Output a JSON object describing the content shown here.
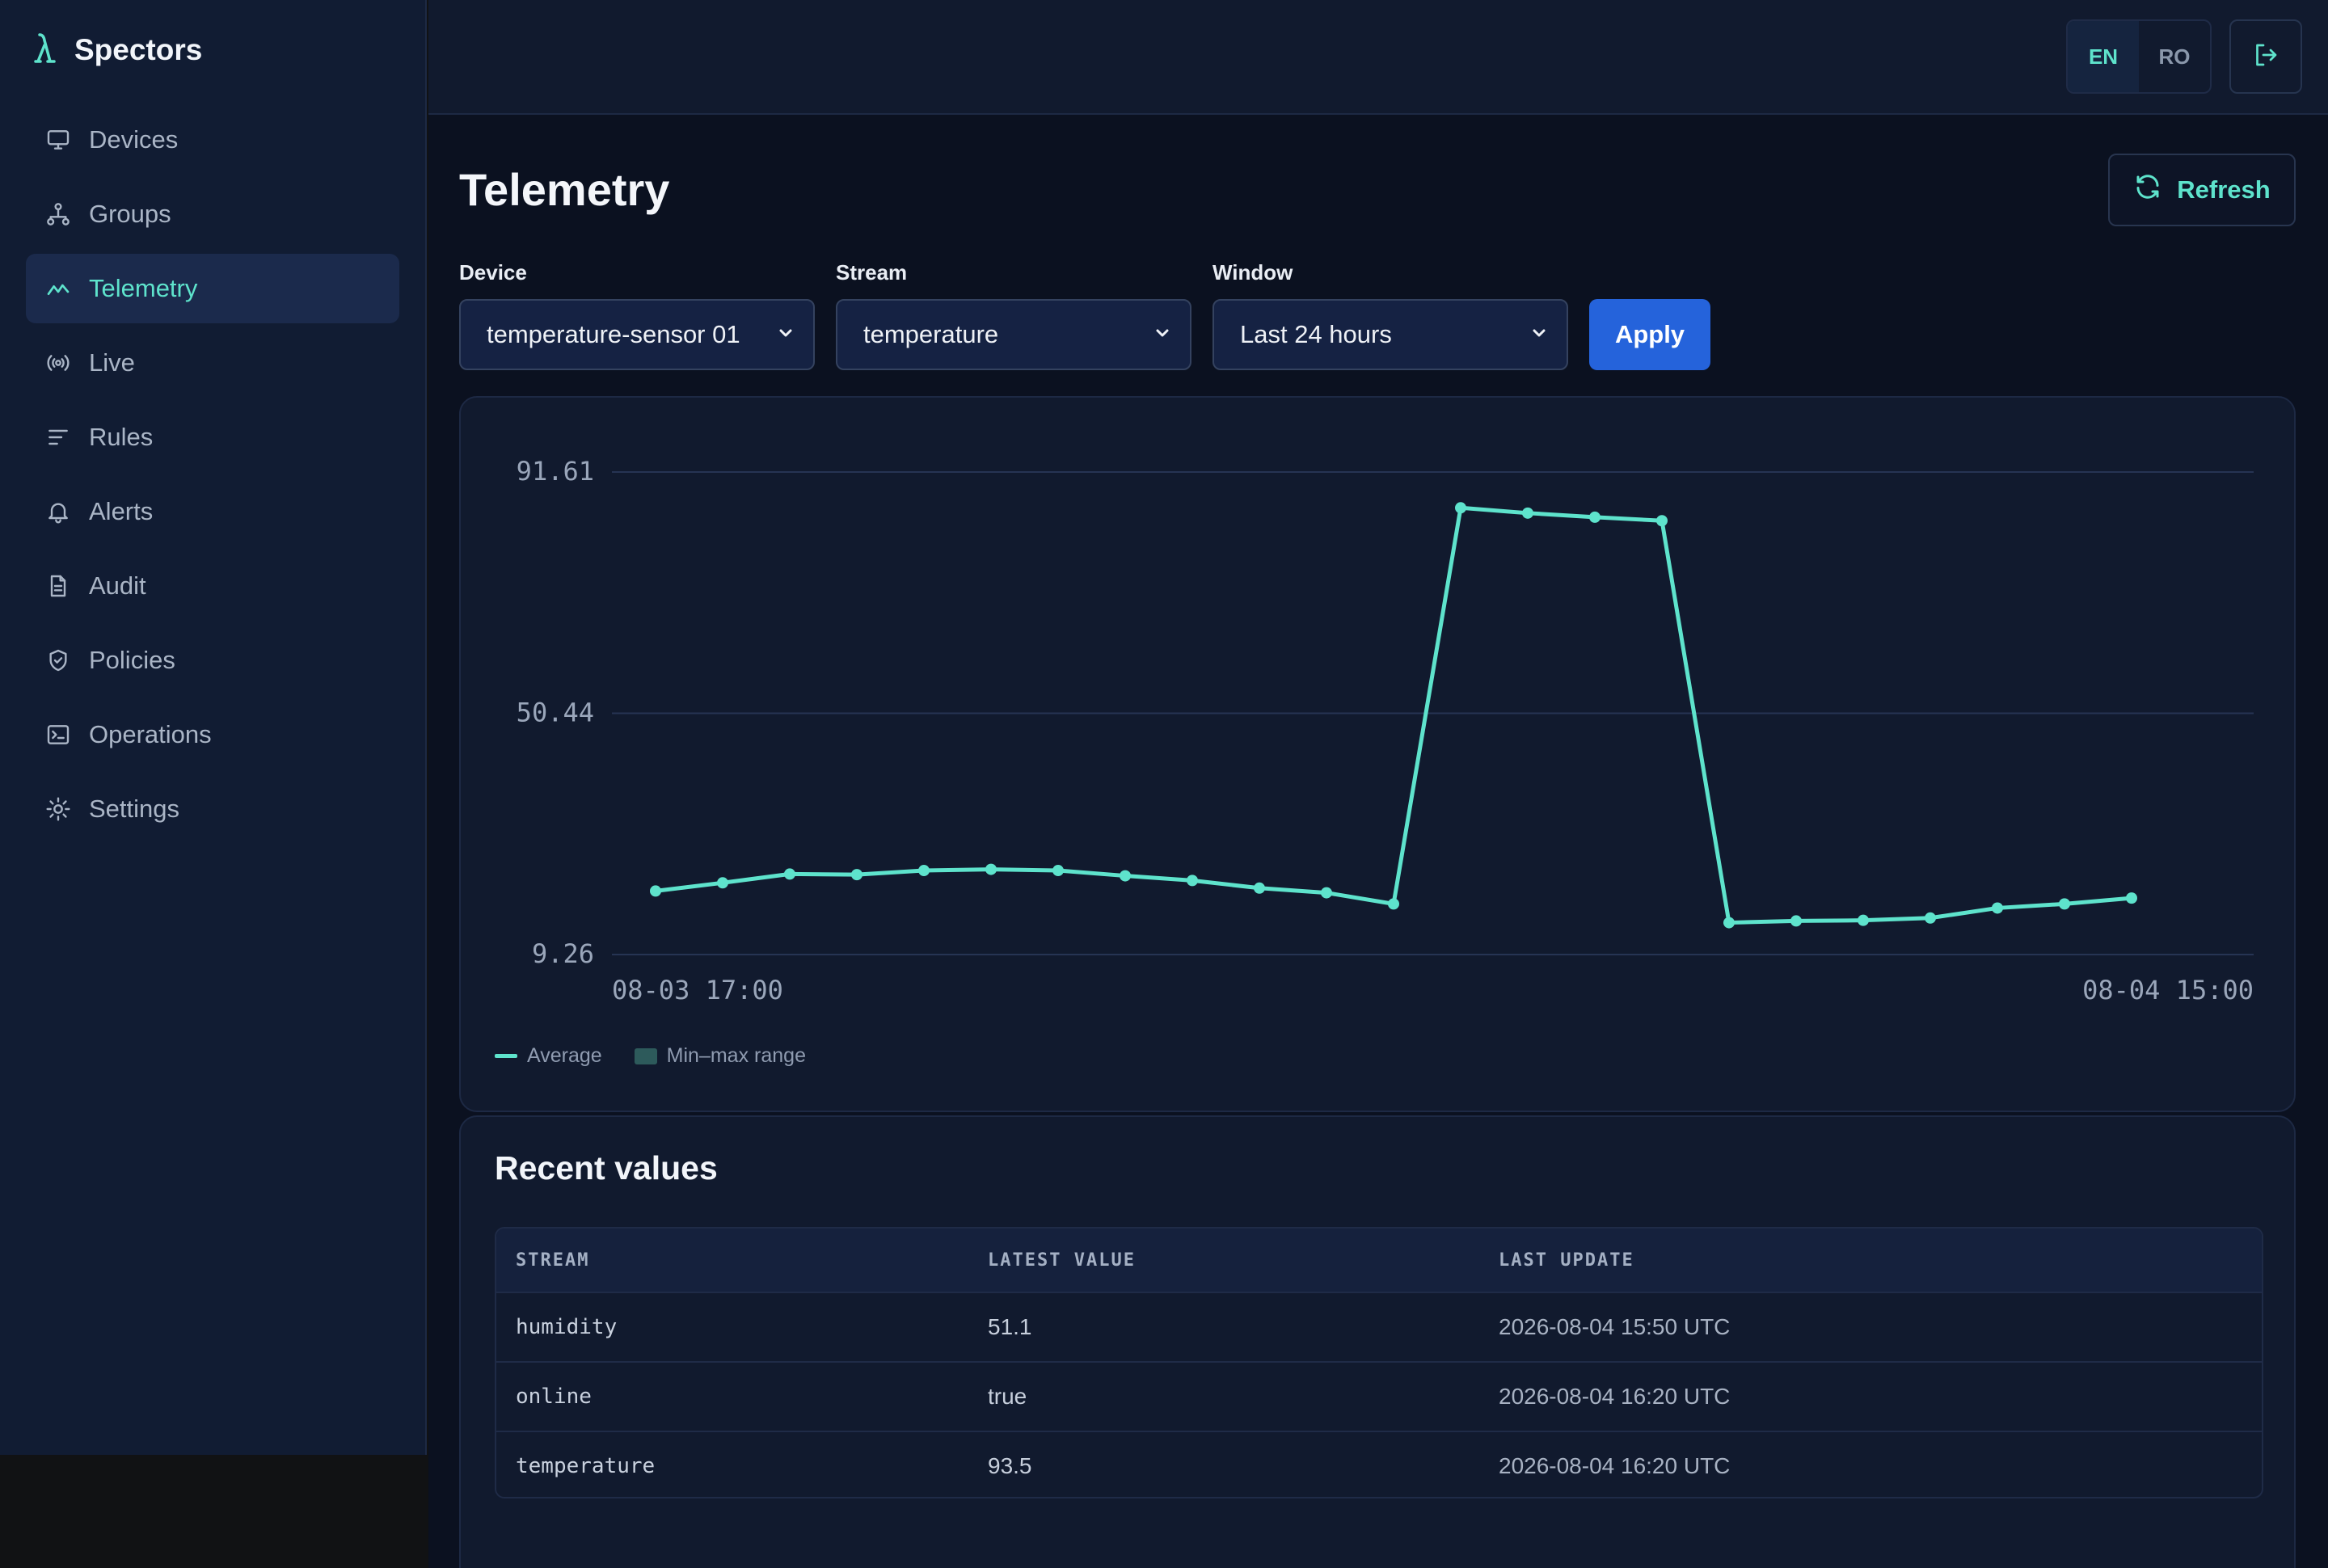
{
  "brand": {
    "name": "Spectors",
    "icon": "lambda-logo-icon"
  },
  "sidebar": {
    "items": [
      {
        "label": "Devices",
        "icon": "monitor-icon",
        "active": false
      },
      {
        "label": "Groups",
        "icon": "hierarchy-icon",
        "active": false
      },
      {
        "label": "Telemetry",
        "icon": "trend-line-icon",
        "active": true
      },
      {
        "label": "Live",
        "icon": "broadcast-icon",
        "active": false
      },
      {
        "label": "Rules",
        "icon": "filter-lines-icon",
        "active": false
      },
      {
        "label": "Alerts",
        "icon": "bell-icon",
        "active": false
      },
      {
        "label": "Audit",
        "icon": "document-icon",
        "active": false
      },
      {
        "label": "Policies",
        "icon": "shield-icon",
        "active": false
      },
      {
        "label": "Operations",
        "icon": "terminal-icon",
        "active": false
      },
      {
        "label": "Settings",
        "icon": "gear-icon",
        "active": false
      }
    ]
  },
  "topbar": {
    "languages": [
      {
        "code": "EN",
        "active": true
      },
      {
        "code": "RO",
        "active": false
      }
    ],
    "logout_icon": "logout-icon"
  },
  "page": {
    "title": "Telemetry",
    "refresh_label": "Refresh",
    "refresh_icon": "refresh-icon"
  },
  "filters": {
    "device": {
      "label": "Device",
      "value": "temperature-sensor 01"
    },
    "stream": {
      "label": "Stream",
      "value": "temperature"
    },
    "window": {
      "label": "Window",
      "value": "Last 24 hours"
    },
    "apply_label": "Apply"
  },
  "chart_data": {
    "type": "line",
    "x_start_label": "08-03 17:00",
    "x_end_label": "08-04 15:00",
    "x": [
      "08-03 17:00",
      "08-03 18:00",
      "08-03 19:00",
      "08-03 20:00",
      "08-03 21:00",
      "08-03 22:00",
      "08-03 23:00",
      "08-04 00:00",
      "08-04 01:00",
      "08-04 02:00",
      "08-04 03:00",
      "08-04 04:00",
      "08-04 05:00",
      "08-04 06:00",
      "08-04 07:00",
      "08-04 08:00",
      "08-04 09:00",
      "08-04 10:00",
      "08-04 11:00",
      "08-04 12:00",
      "08-04 13:00",
      "08-04 14:00",
      "08-04 15:00"
    ],
    "series": [
      {
        "name": "Average",
        "color": "#5ee3cc",
        "values": [
          20.1,
          21.5,
          23.0,
          22.9,
          23.6,
          23.8,
          23.6,
          22.7,
          21.9,
          20.6,
          19.8,
          17.9,
          85.5,
          84.6,
          83.9,
          83.3,
          14.7,
          15.0,
          15.1,
          15.5,
          17.2,
          17.9,
          18.9
        ]
      }
    ],
    "y_ticks": [
      "91.61",
      "50.44",
      "9.26"
    ],
    "ylim": [
      9.26,
      91.61
    ],
    "legend": [
      {
        "label": "Average",
        "kind": "line",
        "color": "#5ee3cc"
      },
      {
        "label": "Min–max range",
        "kind": "area",
        "color": "#2d5a5b"
      }
    ],
    "grid": true
  },
  "recent": {
    "title": "Recent values",
    "columns": [
      "STREAM",
      "LATEST VALUE",
      "LAST UPDATE"
    ],
    "rows": [
      {
        "stream": "humidity",
        "value": "51.1",
        "updated": "2026-08-04 15:50 UTC"
      },
      {
        "stream": "online",
        "value": "true",
        "updated": "2026-08-04 16:20 UTC"
      },
      {
        "stream": "temperature",
        "value": "93.5",
        "updated": "2026-08-04 16:20 UTC"
      }
    ]
  }
}
